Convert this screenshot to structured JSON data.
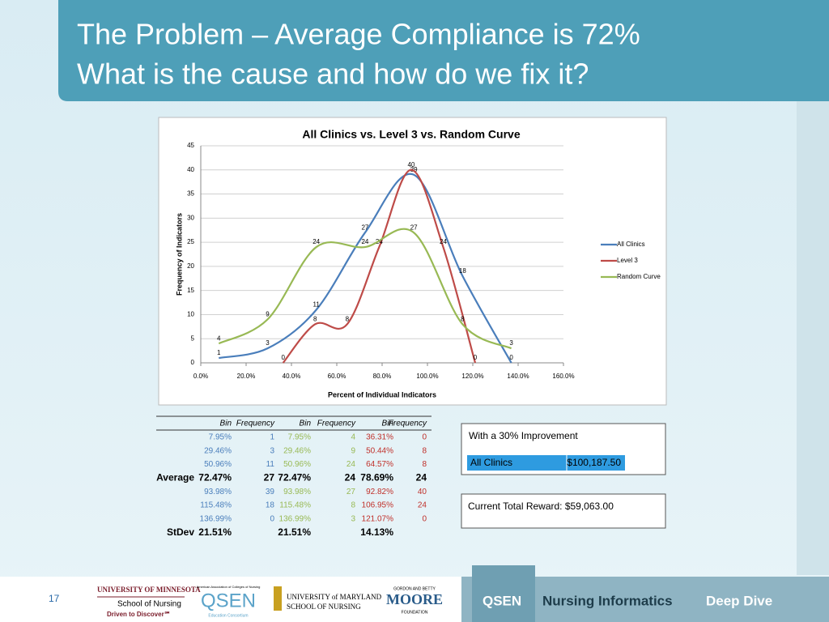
{
  "header": {
    "title_lines": [
      "The Problem – Average Compliance is 72%",
      "What is the cause and how do we fix it?"
    ]
  },
  "chart_data": {
    "type": "line",
    "title": "All Clinics vs. Level 3 vs. Random Curve",
    "x_label": "Percent of Individual Indicators",
    "y_label": "Frequency of Indicators",
    "xlim": [
      0,
      160
    ],
    "xticks": [
      {
        "value": 0,
        "label": "0.0%"
      },
      {
        "value": 20,
        "label": "20.0%"
      },
      {
        "value": 40,
        "label": "40.0%"
      },
      {
        "value": 60,
        "label": "60.0%"
      },
      {
        "value": 80,
        "label": "80.0%"
      },
      {
        "value": 100,
        "label": "100.0%"
      },
      {
        "value": 120,
        "label": "120.0%"
      },
      {
        "value": 140,
        "label": "140.0%"
      },
      {
        "value": 160,
        "label": "160.0%"
      }
    ],
    "ylim": [
      0,
      45
    ],
    "yticks": [
      0,
      5,
      10,
      15,
      20,
      25,
      30,
      35,
      40,
      45
    ],
    "grid": true,
    "legend": "right",
    "smooth": true,
    "series": [
      {
        "name": "All Clinics",
        "color": "#4a7ebb",
        "x": [
          7.95,
          29.46,
          50.96,
          72.47,
          93.98,
          115.48,
          136.99
        ],
        "values": [
          1,
          3,
          11,
          27,
          39,
          18,
          0
        ]
      },
      {
        "name": "Level 3",
        "color": "#be4b48",
        "x": [
          36.31,
          50.44,
          64.57,
          78.69,
          92.82,
          106.95,
          121.07
        ],
        "values": [
          0,
          8,
          8,
          24,
          40,
          24,
          0
        ]
      },
      {
        "name": "Random Curve",
        "color": "#98b954",
        "x": [
          7.95,
          29.46,
          50.96,
          72.47,
          93.98,
          115.48,
          136.99
        ],
        "values": [
          4,
          9,
          24,
          24,
          27,
          8,
          3
        ]
      }
    ]
  },
  "table": {
    "headers": [
      "Bin",
      "Frequency",
      "Bin",
      "Frequency",
      "Bin",
      "Frequency"
    ],
    "rows": [
      [
        null,
        "7.95%",
        "1",
        "7.95%",
        "4",
        "36.31%",
        "0"
      ],
      [
        null,
        "29.46%",
        "3",
        "29.46%",
        "9",
        "50.44%",
        "8"
      ],
      [
        null,
        "50.96%",
        "11",
        "50.96%",
        "24",
        "64.57%",
        "8"
      ],
      [
        "Average",
        "72.47%",
        "27",
        "72.47%",
        "24",
        "78.69%",
        "24"
      ],
      [
        null,
        "93.98%",
        "39",
        "93.98%",
        "27",
        "92.82%",
        "40"
      ],
      [
        null,
        "115.48%",
        "18",
        "115.48%",
        "8",
        "106.95%",
        "24"
      ],
      [
        null,
        "136.99%",
        "0",
        "136.99%",
        "3",
        "121.07%",
        "0"
      ],
      [
        "StDev",
        "21.51%",
        null,
        "21.51%",
        null,
        "14.13%",
        null
      ]
    ]
  },
  "improvement": {
    "title": "With a 30% Improvement",
    "label": "All Clinics",
    "amount": "$100,187.50"
  },
  "current": {
    "text": "Current Total Reward: $59,063.00"
  },
  "footer": {
    "page": "17",
    "umn": "UNIVERSITY OF MINNESOTA",
    "umn_school": "School of Nursing",
    "umn_tag": "Driven to Discover℠",
    "aacn": "American Association of Colleges of Nursing",
    "qsen_logo": "QSEN",
    "qsen_sub": "Education Consortium",
    "umd_1": "UNIVERSITY of MARYLAND",
    "umd_2": "SCHOOL OF NURSING",
    "moore_top": "GORDON AND BETTY",
    "moore": "MOORE",
    "moore_sub": "FOUNDATION",
    "qsen": "QSEN",
    "nursing": "Nursing Informatics",
    "deep": "Deep Dive"
  }
}
